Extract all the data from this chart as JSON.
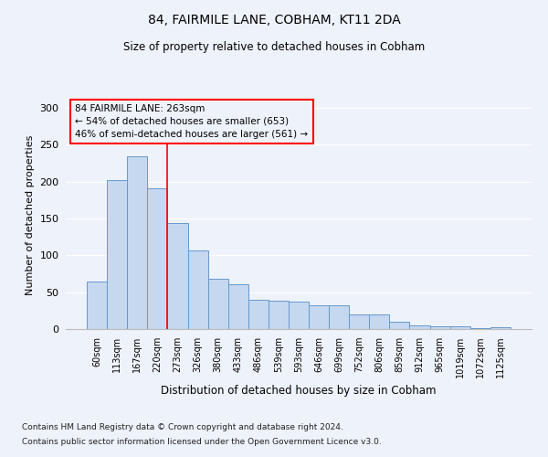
{
  "title1": "84, FAIRMILE LANE, COBHAM, KT11 2DA",
  "title2": "Size of property relative to detached houses in Cobham",
  "xlabel": "Distribution of detached houses by size in Cobham",
  "ylabel": "Number of detached properties",
  "categories": [
    "60sqm",
    "113sqm",
    "167sqm",
    "220sqm",
    "273sqm",
    "326sqm",
    "380sqm",
    "433sqm",
    "486sqm",
    "539sqm",
    "593sqm",
    "646sqm",
    "699sqm",
    "752sqm",
    "806sqm",
    "859sqm",
    "912sqm",
    "965sqm",
    "1019sqm",
    "1072sqm",
    "1125sqm"
  ],
  "values": [
    65,
    202,
    234,
    191,
    144,
    107,
    68,
    61,
    40,
    38,
    37,
    32,
    32,
    20,
    20,
    10,
    5,
    4,
    4,
    1,
    2
  ],
  "bar_color": "#c5d8f0",
  "bar_edge_color": "#6699cc",
  "vline_pos": 3.5,
  "annotation_lines": [
    "84 FAIRMILE LANE: 263sqm",
    "← 54% of detached houses are smaller (653)",
    "46% of semi-detached houses are larger (561) →"
  ],
  "footer1": "Contains HM Land Registry data © Crown copyright and database right 2024.",
  "footer2": "Contains public sector information licensed under the Open Government Licence v3.0.",
  "ylim": [
    0,
    310
  ],
  "yticks": [
    0,
    50,
    100,
    150,
    200,
    250,
    300
  ],
  "background_color": "#eef2fb",
  "grid_color": "#ffffff"
}
